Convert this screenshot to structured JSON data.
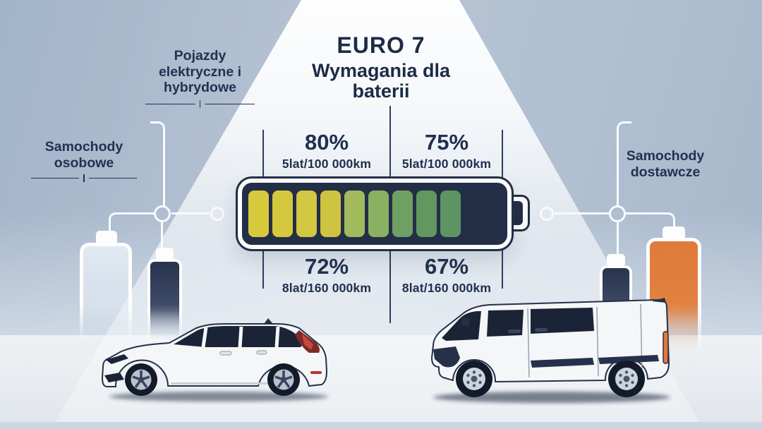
{
  "title": {
    "line1": "EURO 7",
    "line2": "Wymagania dla baterii"
  },
  "vehicle_labels": {
    "electric_hybrid": "Pojazdy elektryczne i hybrydowe",
    "passenger": "Samochody osobowe",
    "delivery": "Samochody dostawcze"
  },
  "requirements": {
    "passenger_5y": {
      "percent": "80%",
      "condition": "5lat/100 000km"
    },
    "delivery_5y": {
      "percent": "75%",
      "condition": "5lat/100 000km"
    },
    "passenger_8y": {
      "percent": "72%",
      "condition": "8lat/160 000km"
    },
    "delivery_8y": {
      "percent": "67%",
      "condition": "8lat/160 000km"
    }
  },
  "battery_gauge": {
    "segments_filled": 9,
    "segment_colors": [
      "#d8ca3d",
      "#d6c83e",
      "#d3c640",
      "#cfc342",
      "#a2ba5c",
      "#8ab061",
      "#6fa063",
      "#62975f",
      "#5e9462"
    ],
    "body_color": "#232e47",
    "outline_color": "#fbfcfd"
  },
  "side_icons": {
    "left_large": "white-battery-icon",
    "left_small": "dark-battery-icon",
    "right_small": "dark-battery-icon",
    "right_large": "orange-battery-icon",
    "orange_color": "#e0793a",
    "dark_color": "#28334d"
  },
  "illustrations": {
    "left": "passenger-car-illustration",
    "right": "delivery-van-illustration"
  },
  "palette": {
    "text": "#1f2d4b",
    "divider": "#2e3d5c",
    "background": "#b0c0d1",
    "spotlight": "#ffffff",
    "floor": "#e9edf1"
  }
}
